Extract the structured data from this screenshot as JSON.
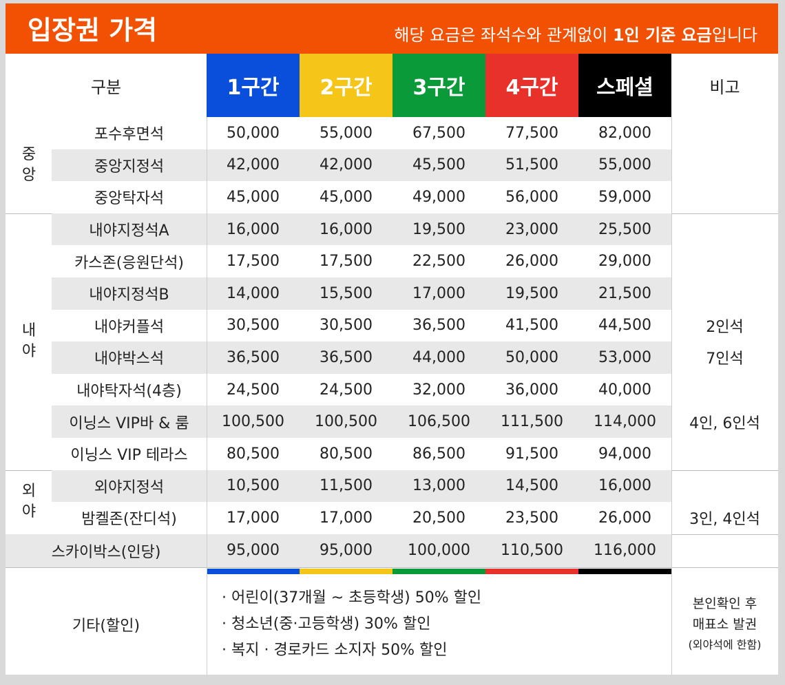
{
  "header": {
    "title": "입장권 가격",
    "note_parts": [
      "해당 요금은 좌석수와 관계없이 ",
      "1인 기준 요금",
      "입니다"
    ]
  },
  "table": {
    "columns": [
      "구분",
      "1구간",
      "2구간",
      "3구간",
      "4구간",
      "스페셜",
      "비고"
    ],
    "groups": [
      {
        "label": "중앙",
        "rows": [
          {
            "name": "포수후면석",
            "prices": [
              "50,000",
              "55,000",
              "67,500",
              "77,500",
              "82,000"
            ],
            "note": null
          },
          {
            "name": "중앙지정석",
            "prices": [
              "42,000",
              "42,000",
              "45,500",
              "51,500",
              "55,000"
            ],
            "note": null
          },
          {
            "name": "중앙탁자석",
            "prices": [
              "45,000",
              "45,000",
              "49,000",
              "56,000",
              "59,000"
            ],
            "note": null
          }
        ]
      },
      {
        "label": "내야",
        "rows": [
          {
            "name": "내야지정석A",
            "prices": [
              "16,000",
              "16,000",
              "19,500",
              "23,000",
              "25,500"
            ],
            "note": null
          },
          {
            "name": "카스존(응원단석)",
            "prices": [
              "17,500",
              "17,500",
              "22,500",
              "26,000",
              "29,000"
            ],
            "note": null
          },
          {
            "name": "내야지정석B",
            "prices": [
              "14,000",
              "15,500",
              "17,000",
              "19,500",
              "21,500"
            ],
            "note": null
          },
          {
            "name": "내야커플석",
            "prices": [
              "30,500",
              "30,500",
              "36,500",
              "41,500",
              "44,500"
            ],
            "note": "2인석"
          },
          {
            "name": "내야박스석",
            "prices": [
              "36,500",
              "36,500",
              "44,000",
              "50,000",
              "53,000"
            ],
            "note": "7인석"
          },
          {
            "name": "내야탁자석(4층)",
            "prices": [
              "24,500",
              "24,500",
              "32,000",
              "36,000",
              "40,000"
            ],
            "note": null
          },
          {
            "name": "이닝스 VIP바 & 룸",
            "prices": [
              "100,500",
              "100,500",
              "106,500",
              "111,500",
              "114,000"
            ],
            "note": "4인, 6인석"
          },
          {
            "name": "이닝스 VIP 테라스",
            "prices": [
              "80,500",
              "80,500",
              "86,500",
              "91,500",
              "94,000"
            ],
            "note": null
          }
        ]
      },
      {
        "label": "외야",
        "rows": [
          {
            "name": "외야지정석",
            "prices": [
              "10,500",
              "11,500",
              "13,000",
              "14,500",
              "16,000"
            ],
            "note": null
          },
          {
            "name": "밤켈존(잔디석)",
            "prices": [
              "17,000",
              "17,000",
              "20,500",
              "23,500",
              "26,000"
            ],
            "note": "3인, 4인석"
          }
        ]
      }
    ],
    "skybox": {
      "name": "스카이박스(인당)",
      "prices": [
        "95,000",
        "95,000",
        "100,000",
        "110,500",
        "116,000"
      ]
    },
    "footer": {
      "label": "기타(할인)",
      "discounts": [
        "· 어린이(37개월 ~ 초등학생) 50% 할인",
        "· 청소년(중·고등학생) 30% 할인",
        "· 복지 · 경로카드 소지자 50% 할인"
      ],
      "note_lines": [
        "본인확인 후",
        "매표소 발권",
        "(외야석에 한함)"
      ]
    }
  }
}
